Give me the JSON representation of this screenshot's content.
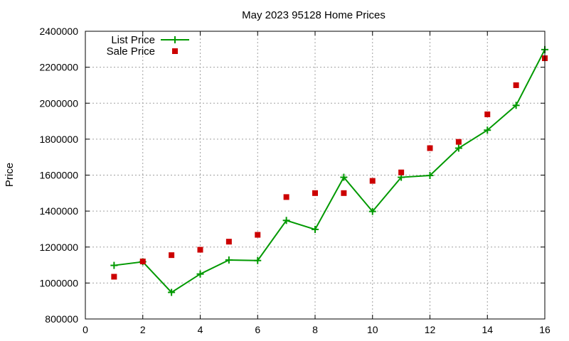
{
  "chart_data": {
    "type": "line",
    "title": "May 2023 95128 Home Prices",
    "xlabel": "",
    "ylabel": "Price",
    "xlim": [
      0,
      16
    ],
    "ylim": [
      800000,
      2400000
    ],
    "xticks": [
      0,
      2,
      4,
      6,
      8,
      10,
      12,
      14,
      16
    ],
    "yticks": [
      800000,
      1000000,
      1200000,
      1400000,
      1600000,
      1800000,
      2000000,
      2200000,
      2400000
    ],
    "grid": true,
    "legend_position": "top-left",
    "series": [
      {
        "name": "List Price",
        "style": "line-with-plus-markers",
        "color": "#009900",
        "points": [
          {
            "x": 1,
            "y": 1098000
          },
          {
            "x": 2,
            "y": 1118000
          },
          {
            "x": 3,
            "y": 948000
          },
          {
            "x": 4,
            "y": 1050000
          },
          {
            "x": 5,
            "y": 1128000
          },
          {
            "x": 6,
            "y": 1125000
          },
          {
            "x": 7,
            "y": 1348000
          },
          {
            "x": 8,
            "y": 1298000
          },
          {
            "x": 9,
            "y": 1588000
          },
          {
            "x": 10,
            "y": 1398000
          },
          {
            "x": 11,
            "y": 1588000
          },
          {
            "x": 12,
            "y": 1598000
          },
          {
            "x": 13,
            "y": 1750000
          },
          {
            "x": 14,
            "y": 1850000
          },
          {
            "x": 15,
            "y": 1988000
          },
          {
            "x": 16,
            "y": 2298000
          }
        ]
      },
      {
        "name": "Sale Price",
        "style": "square-points",
        "color": "#cc0000",
        "points": [
          {
            "x": 1,
            "y": 1035000
          },
          {
            "x": 2,
            "y": 1120000
          },
          {
            "x": 3,
            "y": 1155000
          },
          {
            "x": 4,
            "y": 1185000
          },
          {
            "x": 5,
            "y": 1230000
          },
          {
            "x": 6,
            "y": 1268000
          },
          {
            "x": 7,
            "y": 1478000
          },
          {
            "x": 8,
            "y": 1500000
          },
          {
            "x": 9,
            "y": 1500000
          },
          {
            "x": 10,
            "y": 1568000
          },
          {
            "x": 11,
            "y": 1615000
          },
          {
            "x": 12,
            "y": 1750000
          },
          {
            "x": 13,
            "y": 1785000
          },
          {
            "x": 14,
            "y": 1938000
          },
          {
            "x": 15,
            "y": 2100000
          },
          {
            "x": 16,
            "y": 2250000
          }
        ]
      }
    ]
  }
}
